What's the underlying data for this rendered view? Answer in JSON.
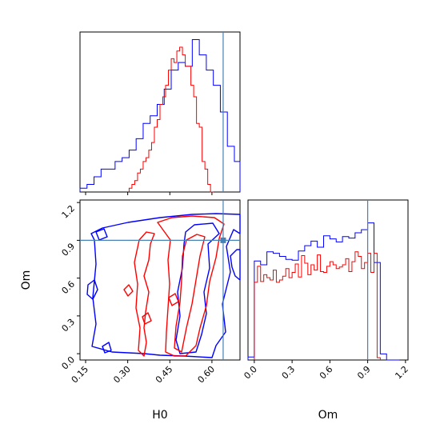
{
  "chart_data": {
    "type": "corner",
    "params": [
      "H0",
      "Om"
    ],
    "truth": {
      "H0": 0.64,
      "Om": 0.9
    },
    "colors": {
      "blue": "#0000ff",
      "red": "#ff0000",
      "truth": "#4682b4"
    },
    "axes": {
      "H0": {
        "label": "H0",
        "range": [
          0.13,
          0.7
        ],
        "ticks": [
          0.15,
          0.3,
          0.45,
          0.6
        ],
        "tick_labels": [
          "0.15",
          "0.30",
          "0.45",
          "0.60"
        ]
      },
      "Om": {
        "label": "Om",
        "range": [
          -0.05,
          1.22
        ],
        "ticks": [
          0.0,
          0.3,
          0.6,
          0.9,
          1.2
        ],
        "tick_labels_y": [
          "0.0",
          "0.3",
          "0.6",
          "0.9",
          "1.2"
        ],
        "tick_labels_x": [
          "0.0",
          "0.3",
          "0.6",
          "0.9",
          "1.2"
        ]
      }
    },
    "hist_H0": {
      "series": [
        {
          "color": "blue",
          "edges": [
            0.13,
            0.155,
            0.18,
            0.205,
            0.23,
            0.255,
            0.28,
            0.305,
            0.33,
            0.355,
            0.38,
            0.405,
            0.43,
            0.455,
            0.48,
            0.505,
            0.53,
            0.555,
            0.58,
            0.605,
            0.63,
            0.655,
            0.68,
            0.7
          ],
          "counts": [
            1,
            2,
            4,
            6,
            6,
            8,
            9,
            11,
            14,
            18,
            20,
            23,
            27,
            32,
            34,
            33,
            40,
            36,
            32,
            28,
            21,
            12,
            8
          ]
        },
        {
          "color": "red",
          "edges": [
            0.305,
            0.315,
            0.325,
            0.335,
            0.345,
            0.355,
            0.365,
            0.375,
            0.385,
            0.395,
            0.405,
            0.415,
            0.425,
            0.435,
            0.445,
            0.455,
            0.465,
            0.475,
            0.485,
            0.495,
            0.505,
            0.515,
            0.525,
            0.535,
            0.545,
            0.555,
            0.565,
            0.575,
            0.585,
            0.595,
            0.605
          ],
          "counts": [
            1,
            2,
            3,
            5,
            6,
            8,
            9,
            11,
            13,
            17,
            19,
            23,
            25,
            28,
            32,
            35,
            34,
            37,
            38,
            36,
            33,
            33,
            28,
            25,
            18,
            17,
            8,
            6,
            2,
            0
          ]
        }
      ],
      "ymax": 42
    },
    "hist_Om": {
      "series": [
        {
          "color": "blue",
          "edges": [
            -0.05,
            0.0,
            0.05,
            0.1,
            0.15,
            0.2,
            0.25,
            0.3,
            0.35,
            0.4,
            0.45,
            0.5,
            0.55,
            0.6,
            0.65,
            0.7,
            0.75,
            0.8,
            0.85,
            0.9,
            0.95,
            1.0,
            1.05,
            1.1,
            1.15
          ],
          "counts": [
            0.4,
            13.0,
            12.5,
            14.2,
            14.0,
            13.6,
            13.2,
            13.1,
            14.3,
            15.0,
            15.6,
            14.8,
            16.3,
            15.9,
            15.5,
            16.2,
            16.0,
            16.7,
            17.1,
            18.0,
            12.8,
            0.8,
            0.0,
            0.0
          ]
        },
        {
          "color": "red",
          "edges": [
            0.0,
            0.025,
            0.05,
            0.075,
            0.1,
            0.125,
            0.15,
            0.175,
            0.2,
            0.225,
            0.25,
            0.275,
            0.3,
            0.325,
            0.35,
            0.375,
            0.4,
            0.425,
            0.45,
            0.475,
            0.5,
            0.525,
            0.55,
            0.575,
            0.6,
            0.625,
            0.65,
            0.675,
            0.7,
            0.725,
            0.75,
            0.775,
            0.8,
            0.825,
            0.85,
            0.875,
            0.9,
            0.925,
            0.95,
            0.975,
            1.0
          ],
          "counts": [
            10.2,
            12.3,
            10.3,
            11.2,
            10.8,
            10.5,
            11.8,
            10.2,
            10.5,
            11.0,
            12.0,
            10.8,
            11.5,
            12.6,
            10.9,
            13.7,
            12.7,
            11.2,
            12.5,
            11.8,
            13.8,
            11.6,
            11.5,
            12.3,
            12.9,
            12.5,
            12.0,
            12.2,
            12.5,
            13.3,
            11.6,
            12.9,
            14.2,
            13.6,
            12.0,
            12.8,
            14.0,
            11.5,
            14.0,
            0.3
          ]
        }
      ],
      "ymax": 21
    }
  }
}
